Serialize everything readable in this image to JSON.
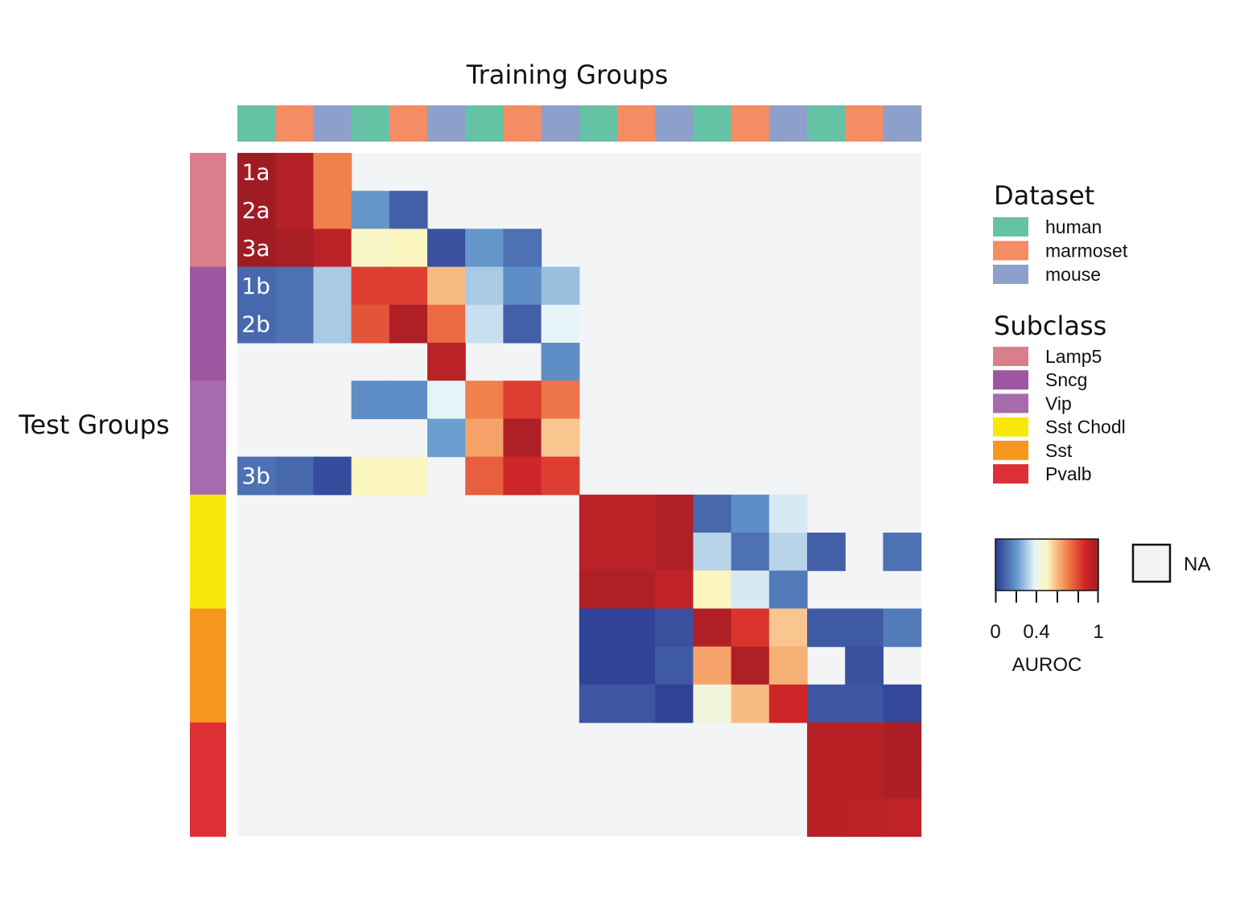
{
  "chart_data": {
    "type": "heatmap",
    "xlabel": "Training Groups",
    "ylabel": "Test Groups",
    "colorbar": {
      "label": "AUROC",
      "min": 0,
      "max": 1,
      "ticks": [
        "0",
        "0.4",
        "1"
      ],
      "na_label": "NA"
    },
    "column_dataset": [
      "human",
      "marmoset",
      "mouse",
      "human",
      "marmoset",
      "mouse",
      "human",
      "marmoset",
      "mouse",
      "human",
      "marmoset",
      "mouse",
      "human",
      "marmoset",
      "mouse",
      "human",
      "marmoset",
      "mouse"
    ],
    "row_subclass": [
      "Lamp5",
      "Lamp5",
      "Lamp5",
      "Sncg",
      "Sncg",
      "Sncg",
      "Vip",
      "Vip",
      "Vip",
      "Sst Chodl",
      "Sst Chodl",
      "Sst Chodl",
      "Sst",
      "Sst",
      "Sst",
      "Pvalb",
      "Pvalb",
      "Pvalb"
    ],
    "row_labels": [
      "1a",
      "2a",
      "3a",
      "1b",
      "2b",
      "",
      "",
      "",
      "3b",
      "",
      "",
      "",
      "",
      "",
      "",
      "",
      "",
      ""
    ],
    "values": [
      [
        1.0,
        0.95,
        0.7,
        null,
        null,
        null,
        null,
        null,
        null,
        null,
        null,
        null,
        null,
        null,
        null,
        null,
        null,
        null
      ],
      [
        1.0,
        0.95,
        0.7,
        0.2,
        0.08,
        null,
        null,
        null,
        null,
        null,
        null,
        null,
        null,
        null,
        null,
        null,
        null,
        null
      ],
      [
        1.0,
        0.98,
        0.93,
        0.48,
        0.5,
        0.05,
        0.2,
        0.12,
        null,
        null,
        null,
        null,
        null,
        null,
        null,
        null,
        null,
        null
      ],
      [
        0.1,
        0.12,
        0.3,
        0.82,
        0.82,
        0.6,
        0.3,
        0.18,
        0.28,
        null,
        null,
        null,
        null,
        null,
        null,
        null,
        null,
        null
      ],
      [
        0.1,
        0.12,
        0.3,
        0.78,
        0.96,
        0.74,
        0.34,
        0.08,
        0.38,
        null,
        null,
        null,
        null,
        null,
        null,
        null,
        null,
        null
      ],
      [
        null,
        null,
        null,
        null,
        null,
        0.93,
        null,
        null,
        0.18,
        null,
        null,
        null,
        null,
        null,
        null,
        null,
        null,
        null
      ],
      [
        null,
        null,
        null,
        0.18,
        0.18,
        0.38,
        0.7,
        0.82,
        0.72,
        null,
        null,
        null,
        null,
        null,
        null,
        null,
        null,
        null
      ],
      [
        null,
        null,
        null,
        null,
        null,
        0.22,
        0.64,
        0.96,
        0.58,
        null,
        null,
        null,
        null,
        null,
        null,
        null,
        null,
        null
      ],
      [
        0.12,
        0.1,
        0.04,
        0.5,
        0.5,
        null,
        0.76,
        0.88,
        0.82,
        null,
        null,
        null,
        null,
        null,
        null,
        null,
        null,
        null
      ],
      [
        null,
        null,
        null,
        null,
        null,
        null,
        null,
        null,
        null,
        0.93,
        0.93,
        0.96,
        0.1,
        0.18,
        0.36,
        null,
        null,
        null
      ],
      [
        null,
        null,
        null,
        null,
        null,
        null,
        null,
        null,
        null,
        0.93,
        0.93,
        0.96,
        0.32,
        0.12,
        0.32,
        0.08,
        null,
        0.12
      ],
      [
        null,
        null,
        null,
        null,
        null,
        null,
        null,
        null,
        null,
        0.96,
        0.96,
        0.92,
        0.5,
        0.36,
        0.14,
        null,
        null,
        null
      ],
      [
        null,
        null,
        null,
        null,
        null,
        null,
        null,
        null,
        null,
        0.02,
        0.02,
        0.05,
        0.96,
        0.84,
        0.58,
        0.07,
        0.07,
        0.14
      ],
      [
        null,
        null,
        null,
        null,
        null,
        null,
        null,
        null,
        null,
        0.02,
        0.02,
        0.07,
        0.64,
        0.96,
        0.62,
        null,
        0.05,
        null
      ],
      [
        null,
        null,
        null,
        null,
        null,
        null,
        null,
        null,
        null,
        0.06,
        0.06,
        0.02,
        0.44,
        0.6,
        0.88,
        0.06,
        0.06,
        0.03
      ],
      [
        null,
        null,
        null,
        null,
        null,
        null,
        null,
        null,
        null,
        null,
        null,
        null,
        null,
        null,
        null,
        0.94,
        0.94,
        0.97
      ],
      [
        null,
        null,
        null,
        null,
        null,
        null,
        null,
        null,
        null,
        null,
        null,
        null,
        null,
        null,
        null,
        0.94,
        0.94,
        0.97
      ],
      [
        null,
        null,
        null,
        null,
        null,
        null,
        null,
        null,
        null,
        null,
        null,
        null,
        null,
        null,
        null,
        0.94,
        0.93,
        0.92
      ]
    ]
  },
  "legend": {
    "dataset_title": "Dataset",
    "dataset": [
      {
        "name": "human",
        "color": "#66c2a5"
      },
      {
        "name": "marmoset",
        "color": "#f48c64"
      },
      {
        "name": "mouse",
        "color": "#8da0cb"
      }
    ],
    "subclass_title": "Subclass",
    "subclass": [
      {
        "name": "Lamp5",
        "color": "#d97f8c"
      },
      {
        "name": "Sncg",
        "color": "#9e56a0"
      },
      {
        "name": "Vip",
        "color": "#a66bad"
      },
      {
        "name": "Sst Chodl",
        "color": "#f7e80a"
      },
      {
        "name": "Sst",
        "color": "#f7981e"
      },
      {
        "name": "Pvalb",
        "color": "#dd3036"
      }
    ]
  },
  "colors": {
    "na": "#f3f4f6",
    "scale": [
      "#2b3a91",
      "#6a9fd0",
      "#e6f4f8",
      "#fbf6c0",
      "#f48b50",
      "#d62828",
      "#a01c25"
    ]
  }
}
